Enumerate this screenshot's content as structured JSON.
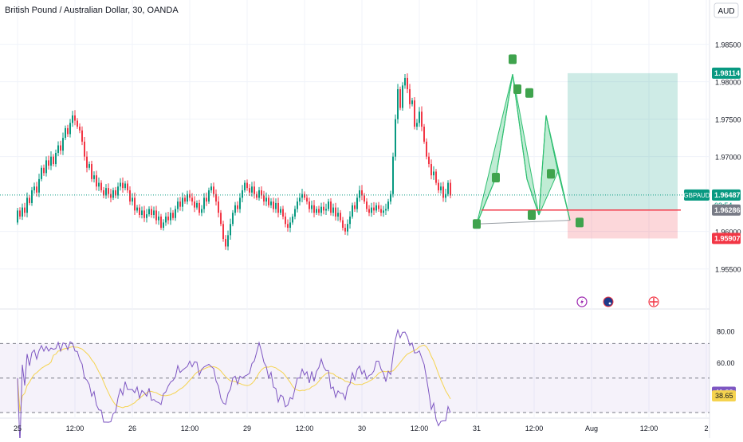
{
  "chart_data": {
    "type": "candlestick",
    "title": "British Pound / Australian Dollar, 30, OANDA",
    "currency": "AUD",
    "symbol": "GBPAUD",
    "timer": "03:54",
    "ylim": [
      1.9505,
      1.989
    ],
    "y_ticks": [
      "1.98500",
      "1.98000",
      "1.97500",
      "1.97000",
      "1.96000",
      "1.95500"
    ],
    "x_ticks": [
      "25",
      "12:00",
      "26",
      "12:00",
      "29",
      "12:00",
      "30",
      "12:00",
      "31",
      "12:00",
      "Aug",
      "12:00",
      "2"
    ],
    "x_tick_bars": [
      0,
      24,
      48,
      72,
      96,
      120,
      144,
      168,
      192,
      216,
      240,
      264,
      288
    ],
    "current_price": {
      "value": 1.96487,
      "label": "1.96487"
    },
    "position": {
      "side": "long",
      "entry": {
        "value": 1.96286,
        "label": "1.96286"
      },
      "target": {
        "value": 1.98114,
        "label": "1.98114"
      },
      "stop": {
        "value": 1.95907,
        "label": "1.95907"
      },
      "start_bar": 230,
      "end_bar": 276
    },
    "candles": [
      [
        1.9612,
        1.9628
      ],
      [
        1.9628,
        1.962
      ],
      [
        1.962,
        1.9632
      ],
      [
        1.9632,
        1.9625
      ],
      [
        1.9625,
        1.9645
      ],
      [
        1.9645,
        1.9638
      ],
      [
        1.9638,
        1.9655
      ],
      [
        1.9655,
        1.966
      ],
      [
        1.966,
        1.9652
      ],
      [
        1.9652,
        1.967
      ],
      [
        1.967,
        1.9685
      ],
      [
        1.9685,
        1.9678
      ],
      [
        1.9678,
        1.9695
      ],
      [
        1.9695,
        1.9688
      ],
      [
        1.9688,
        1.97
      ],
      [
        1.97,
        1.969
      ],
      [
        1.969,
        1.9705
      ],
      [
        1.9705,
        1.9715
      ],
      [
        1.9715,
        1.9708
      ],
      [
        1.9708,
        1.9725
      ],
      [
        1.9725,
        1.9738
      ],
      [
        1.9738,
        1.973
      ],
      [
        1.973,
        1.9745
      ],
      [
        1.9745,
        1.9755
      ],
      [
        1.9755,
        1.9748
      ],
      [
        1.9748,
        1.974
      ],
      [
        1.974,
        1.9735
      ],
      [
        1.9735,
        1.972
      ],
      [
        1.972,
        1.97
      ],
      [
        1.97,
        1.9685
      ],
      [
        1.9685,
        1.969
      ],
      [
        1.969,
        1.967
      ],
      [
        1.967,
        1.9675
      ],
      [
        1.9675,
        1.966
      ],
      [
        1.966,
        1.9665
      ],
      [
        1.9665,
        1.9655
      ],
      [
        1.9655,
        1.9648
      ],
      [
        1.9648,
        1.9658
      ],
      [
        1.9658,
        1.965
      ],
      [
        1.965,
        1.9645
      ],
      [
        1.9645,
        1.9655
      ],
      [
        1.9655,
        1.9648
      ],
      [
        1.9648,
        1.966
      ],
      [
        1.966,
        1.9665
      ],
      [
        1.9665,
        1.9658
      ],
      [
        1.9658,
        1.9664
      ],
      [
        1.9664,
        1.9655
      ],
      [
        1.9655,
        1.964
      ],
      [
        1.964,
        1.9645
      ],
      [
        1.9645,
        1.9628
      ],
      [
        1.9628,
        1.9632
      ],
      [
        1.9632,
        1.9622
      ],
      [
        1.9622,
        1.9628
      ],
      [
        1.9628,
        1.9618
      ],
      [
        1.9618,
        1.9623
      ],
      [
        1.9623,
        1.963
      ],
      [
        1.963,
        1.9622
      ],
      [
        1.9622,
        1.9628
      ],
      [
        1.9628,
        1.9615
      ],
      [
        1.9615,
        1.962
      ],
      [
        1.962,
        1.9605
      ],
      [
        1.9605,
        1.9612
      ],
      [
        1.9612,
        1.962
      ],
      [
        1.962,
        1.9615
      ],
      [
        1.9615,
        1.9625
      ],
      [
        1.9625,
        1.9618
      ],
      [
        1.9618,
        1.963
      ],
      [
        1.963,
        1.964
      ],
      [
        1.964,
        1.9633
      ],
      [
        1.9633,
        1.9645
      ],
      [
        1.9645,
        1.964
      ],
      [
        1.964,
        1.965
      ],
      [
        1.965,
        1.9645
      ],
      [
        1.9645,
        1.964
      ],
      [
        1.964,
        1.9632
      ],
      [
        1.9632,
        1.9638
      ],
      [
        1.9638,
        1.9625
      ],
      [
        1.9625,
        1.963
      ],
      [
        1.963,
        1.9645
      ],
      [
        1.9645,
        1.964
      ],
      [
        1.964,
        1.9655
      ],
      [
        1.9655,
        1.966
      ],
      [
        1.966,
        1.965
      ],
      [
        1.965,
        1.964
      ],
      [
        1.964,
        1.9625
      ],
      [
        1.9625,
        1.961
      ],
      [
        1.961,
        1.959
      ],
      [
        1.959,
        1.958
      ],
      [
        1.958,
        1.9595
      ],
      [
        1.9595,
        1.961
      ],
      [
        1.961,
        1.9625
      ],
      [
        1.9625,
        1.9635
      ],
      [
        1.9635,
        1.963
      ],
      [
        1.963,
        1.9645
      ],
      [
        1.9645,
        1.9655
      ],
      [
        1.9655,
        1.9665
      ],
      [
        1.9665,
        1.9658
      ],
      [
        1.9658,
        1.9652
      ],
      [
        1.9652,
        1.966
      ],
      [
        1.966,
        1.965
      ],
      [
        1.965,
        1.9645
      ],
      [
        1.9645,
        1.9655
      ],
      [
        1.9655,
        1.9648
      ],
      [
        1.9648,
        1.964
      ],
      [
        1.964,
        1.9645
      ],
      [
        1.9645,
        1.9635
      ],
      [
        1.9635,
        1.964
      ],
      [
        1.964,
        1.963
      ],
      [
        1.963,
        1.9638
      ],
      [
        1.9638,
        1.9625
      ],
      [
        1.9625,
        1.963
      ],
      [
        1.963,
        1.962
      ],
      [
        1.962,
        1.961
      ],
      [
        1.961,
        1.9605
      ],
      [
        1.9605,
        1.9612
      ],
      [
        1.9612,
        1.962
      ],
      [
        1.962,
        1.963
      ],
      [
        1.963,
        1.964
      ],
      [
        1.964,
        1.9645
      ],
      [
        1.9645,
        1.965
      ],
      [
        1.965,
        1.9645
      ],
      [
        1.9645,
        1.964
      ],
      [
        1.964,
        1.963
      ],
      [
        1.963,
        1.9635
      ],
      [
        1.9635,
        1.9625
      ],
      [
        1.9625,
        1.963
      ],
      [
        1.963,
        1.9625
      ],
      [
        1.9625,
        1.9633
      ],
      [
        1.9633,
        1.9628
      ],
      [
        1.9628,
        1.963
      ],
      [
        1.963,
        1.964
      ],
      [
        1.964,
        1.9625
      ],
      [
        1.9625,
        1.9632
      ],
      [
        1.9632,
        1.962
      ],
      [
        1.962,
        1.9625
      ],
      [
        1.9625,
        1.9615
      ],
      [
        1.9615,
        1.9605
      ],
      [
        1.9605,
        1.96
      ],
      [
        1.96,
        1.961
      ],
      [
        1.961,
        1.962
      ],
      [
        1.962,
        1.9635
      ],
      [
        1.9635,
        1.963
      ],
      [
        1.963,
        1.9645
      ],
      [
        1.9645,
        1.9655
      ],
      [
        1.9655,
        1.9648
      ],
      [
        1.9648,
        1.964
      ],
      [
        1.964,
        1.963
      ],
      [
        1.963,
        1.9625
      ],
      [
        1.9625,
        1.9632
      ],
      [
        1.9632,
        1.9628
      ],
      [
        1.9628,
        1.9635
      ],
      [
        1.9635,
        1.963
      ],
      [
        1.963,
        1.9625
      ],
      [
        1.9625,
        1.9628
      ],
      [
        1.9628,
        1.963
      ],
      [
        1.963,
        1.964
      ],
      [
        1.964,
        1.965
      ],
      [
        1.965,
        1.97
      ],
      [
        1.97,
        1.975
      ],
      [
        1.975,
        1.979
      ],
      [
        1.979,
        1.9765
      ],
      [
        1.9765,
        1.9795
      ],
      [
        1.9795,
        1.9805
      ],
      [
        1.9805,
        1.979
      ],
      [
        1.979,
        1.977
      ],
      [
        1.977,
        1.9775
      ],
      [
        1.9775,
        1.974
      ],
      [
        1.974,
        1.9745
      ],
      [
        1.9745,
        1.976
      ],
      [
        1.976,
        1.974
      ],
      [
        1.974,
        1.972
      ],
      [
        1.972,
        1.97
      ],
      [
        1.97,
        1.969
      ],
      [
        1.969,
        1.9675
      ],
      [
        1.9675,
        1.968
      ],
      [
        1.968,
        1.9665
      ],
      [
        1.9665,
        1.9655
      ],
      [
        1.9655,
        1.966
      ],
      [
        1.966,
        1.9645
      ],
      [
        1.9645,
        1.965
      ],
      [
        1.965,
        1.9665
      ],
      [
        1.9665,
        1.9648
      ]
    ],
    "rsi": {
      "name": "RSI",
      "upper": 72,
      "middle": 50,
      "lower": 28,
      "ylim": [
        26,
        92
      ],
      "ticks": [
        "80.00",
        "60.00"
      ],
      "rsi_value": {
        "value": 41.0,
        "label": "41.00"
      },
      "ma_value": {
        "value": 38.65,
        "label": "38.65"
      }
    },
    "pattern": {
      "points": [
        [
          192,
          1.961
        ],
        [
          200,
          1.9672
        ],
        [
          207,
          1.981
        ],
        [
          213,
          1.967
        ],
        [
          218,
          1.9622
        ],
        [
          221,
          1.9755
        ],
        [
          226,
          1.968
        ],
        [
          231,
          1.9615
        ]
      ],
      "labels": [
        {
          "bar": 192,
          "price": 1.961
        },
        {
          "bar": 200,
          "price": 1.9672
        },
        {
          "bar": 207,
          "price": 1.983
        },
        {
          "bar": 209,
          "price": 1.979
        },
        {
          "bar": 214,
          "price": 1.9785
        },
        {
          "bar": 215,
          "price": 1.9622
        },
        {
          "bar": 223,
          "price": 1.9677
        },
        {
          "bar": 235,
          "price": 1.9612
        }
      ]
    },
    "events": [
      {
        "icon": "lightning-icon",
        "bar": 236
      },
      {
        "icon": "flag-au-icon",
        "bar": 247
      },
      {
        "icon": "flag-gb-icon",
        "bar": 266
      }
    ]
  }
}
